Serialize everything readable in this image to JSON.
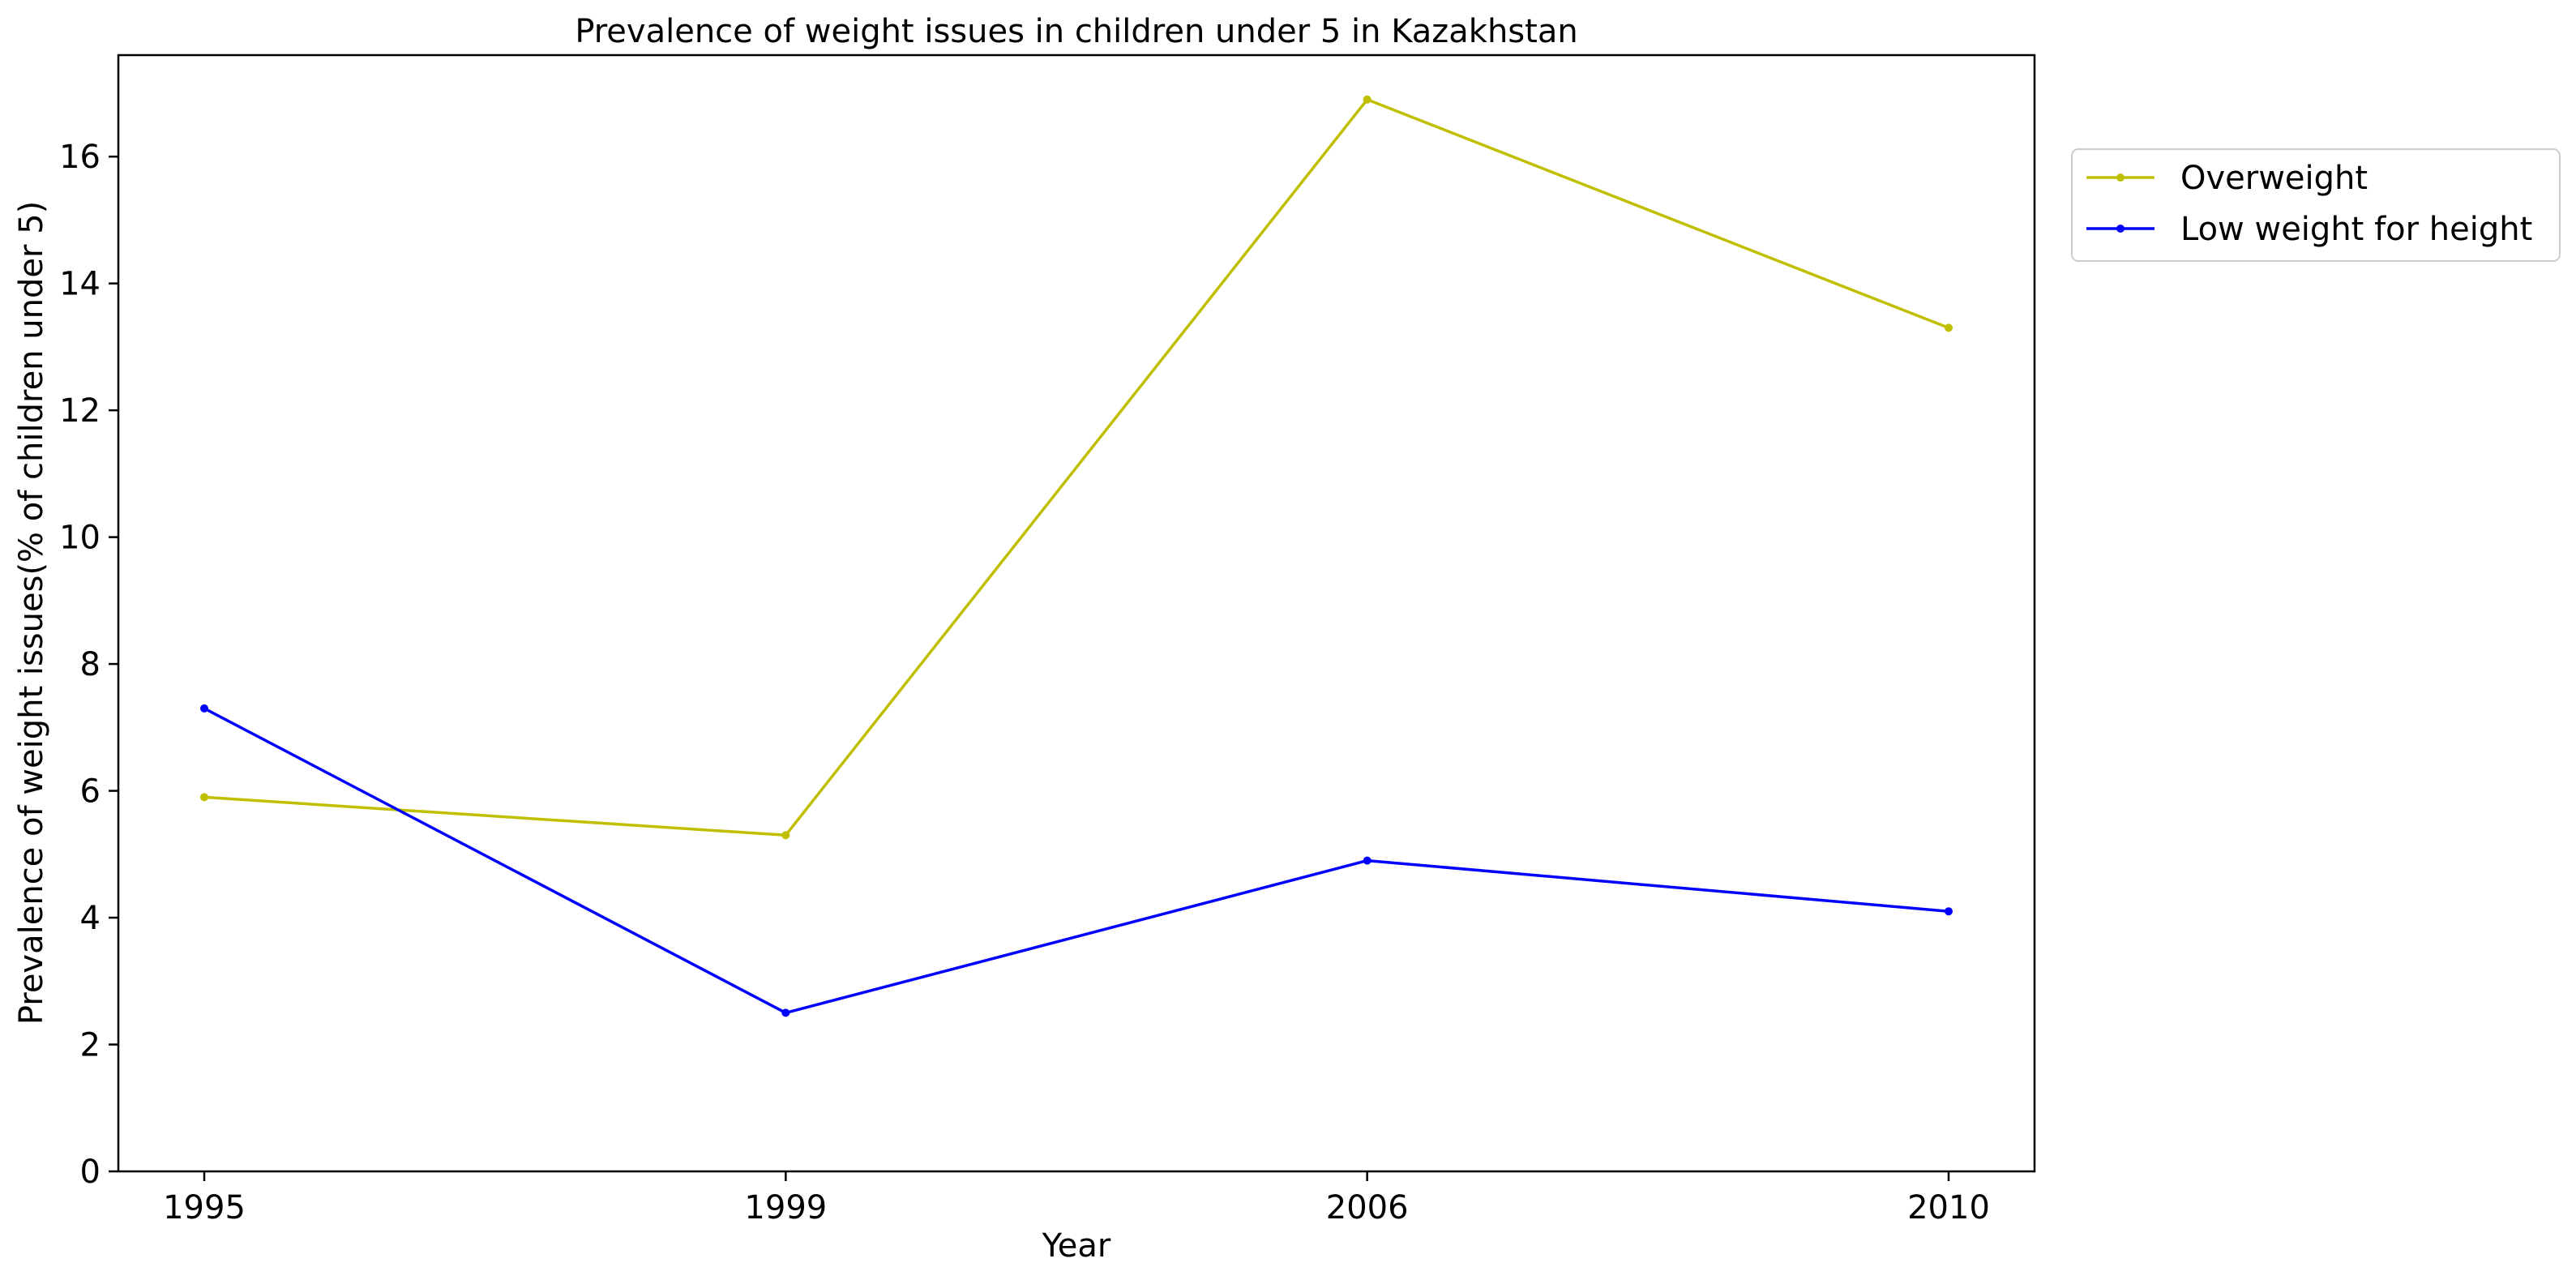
{
  "chart_data": {
    "type": "line",
    "title": "Prevalence of weight issues in children under 5 in Kazakhstan",
    "xlabel": "Year",
    "ylabel": "Prevalence of weight issues(% of children under 5)",
    "categories": [
      "1995",
      "1999",
      "2006",
      "2010"
    ],
    "ylim": [
      0,
      17.6
    ],
    "yticks": [
      0,
      2,
      4,
      6,
      8,
      10,
      12,
      14,
      16
    ],
    "grid": false,
    "legend_position": "outside-top-right",
    "series": [
      {
        "name": "Overweight",
        "color": "#bfbf00",
        "values": [
          5.9,
          5.3,
          16.9,
          13.3
        ]
      },
      {
        "name": "Low weight for height",
        "color": "#0000ff",
        "values": [
          7.3,
          2.5,
          4.9,
          4.1
        ]
      }
    ]
  }
}
